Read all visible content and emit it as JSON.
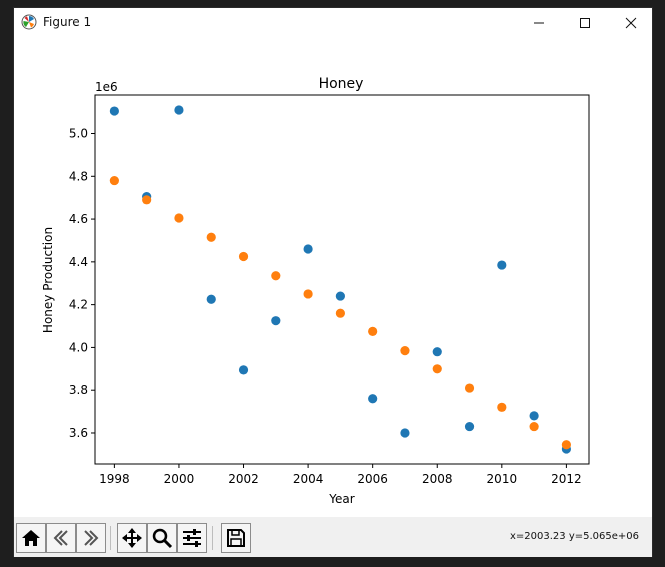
{
  "window": {
    "title": "Figure 1",
    "minimize_icon": "minimize-icon",
    "maximize_icon": "maximize-icon",
    "close_icon": "close-icon"
  },
  "toolbar": {
    "buttons": [
      {
        "name": "home-button",
        "icon": "home-icon"
      },
      {
        "name": "back-button",
        "icon": "back-arrow-icon"
      },
      {
        "name": "forward-button",
        "icon": "forward-arrow-icon"
      },
      {
        "name": "pan-button",
        "icon": "pan-arrows-icon"
      },
      {
        "name": "zoom-button",
        "icon": "magnifier-icon"
      },
      {
        "name": "configure-subplots-button",
        "icon": "sliders-icon"
      },
      {
        "name": "save-button",
        "icon": "floppy-disk-icon"
      }
    ],
    "coords_readout": "x=2003.23 y=5.065e+06"
  },
  "chart_data": {
    "type": "scatter",
    "title": "Honey",
    "xlabel": "Year",
    "ylabel": "Honey Production",
    "offset_label": "1e6",
    "xlim": [
      1997.4,
      2012.7
    ],
    "ylim": [
      3.455,
      5.18
    ],
    "xticks": [
      1998,
      2000,
      2002,
      2004,
      2006,
      2008,
      2010,
      2012
    ],
    "xtick_labels": [
      "1998",
      "2000",
      "2002",
      "2004",
      "2006",
      "2008",
      "2010",
      "2012"
    ],
    "yticks": [
      3.6,
      3.8,
      4.0,
      4.2,
      4.4,
      4.6,
      4.8,
      5.0
    ],
    "ytick_labels": [
      "3.6",
      "3.8",
      "4.0",
      "4.2",
      "4.4",
      "4.6",
      "4.8",
      "5.0"
    ],
    "grid": false,
    "series": [
      {
        "color": "#1f77b4",
        "x": [
          1998,
          1999,
          2000,
          2001,
          2002,
          2003,
          2004,
          2005,
          2006,
          2007,
          2008,
          2009,
          2010,
          2011,
          2012
        ],
        "y": [
          5.105,
          4.705,
          5.11,
          4.225,
          3.895,
          4.125,
          4.46,
          4.24,
          3.76,
          3.6,
          3.98,
          3.63,
          4.385,
          3.68,
          3.525
        ]
      },
      {
        "color": "#ff7f0e",
        "x": [
          1998,
          1999,
          2000,
          2001,
          2002,
          2003,
          2004,
          2005,
          2006,
          2007,
          2008,
          2009,
          2010,
          2011,
          2012
        ],
        "y": [
          4.78,
          4.69,
          4.605,
          4.515,
          4.425,
          4.335,
          4.25,
          4.16,
          4.075,
          3.985,
          3.9,
          3.81,
          3.72,
          3.63,
          3.545
        ]
      }
    ]
  }
}
